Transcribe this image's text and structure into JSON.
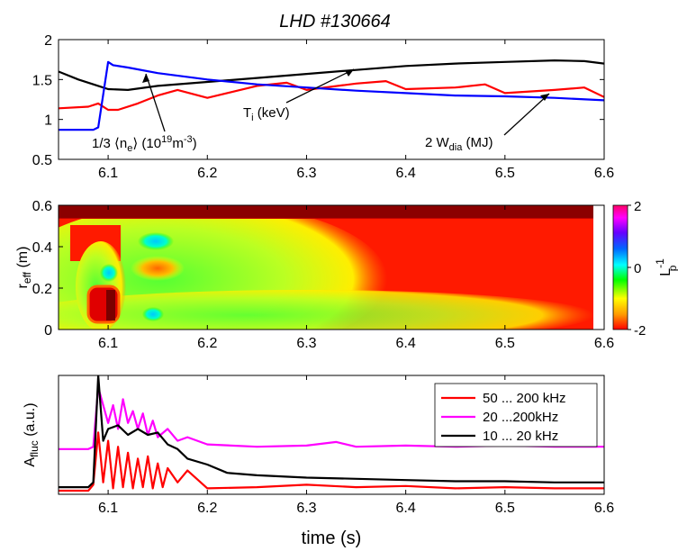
{
  "title": "LHD #130664",
  "chart_data": [
    {
      "type": "line",
      "panel": "top",
      "xlim": [
        6.05,
        6.6
      ],
      "ylim": [
        0.5,
        2
      ],
      "xticks": [
        6.1,
        6.2,
        6.3,
        6.4,
        6.5,
        6.6
      ],
      "xtick_labels": [
        "6.1",
        "6.2",
        "6.3",
        "6.4",
        "6.5",
        "6.6"
      ],
      "yticks": [
        0.5,
        1,
        1.5,
        2
      ],
      "ytick_labels": [
        "0.5",
        "1",
        "1.5",
        "2"
      ],
      "series": [
        {
          "name": "2 W_dia (MJ)",
          "color": "#000000",
          "x": [
            6.05,
            6.07,
            6.09,
            6.1,
            6.12,
            6.15,
            6.2,
            6.25,
            6.3,
            6.35,
            6.4,
            6.45,
            6.5,
            6.55,
            6.58,
            6.6
          ],
          "y": [
            1.6,
            1.5,
            1.42,
            1.38,
            1.37,
            1.42,
            1.47,
            1.52,
            1.57,
            1.62,
            1.67,
            1.7,
            1.72,
            1.74,
            1.73,
            1.7
          ]
        },
        {
          "name": "T_i (keV)",
          "color": "#ff0000",
          "x": [
            6.05,
            6.08,
            6.09,
            6.1,
            6.11,
            6.13,
            6.15,
            6.17,
            6.2,
            6.25,
            6.28,
            6.3,
            6.35,
            6.38,
            6.4,
            6.45,
            6.48,
            6.5,
            6.55,
            6.58,
            6.6
          ],
          "y": [
            1.14,
            1.16,
            1.2,
            1.12,
            1.12,
            1.2,
            1.3,
            1.37,
            1.27,
            1.42,
            1.46,
            1.37,
            1.45,
            1.48,
            1.38,
            1.4,
            1.44,
            1.33,
            1.37,
            1.4,
            1.28
          ]
        },
        {
          "name": "1/3 <n_e> (10^19 m^-3)",
          "color": "#0000ff",
          "x": [
            6.05,
            6.085,
            6.09,
            6.1,
            6.105,
            6.12,
            6.15,
            6.2,
            6.25,
            6.3,
            6.35,
            6.4,
            6.45,
            6.5,
            6.55,
            6.6
          ],
          "y": [
            0.87,
            0.87,
            0.9,
            1.72,
            1.68,
            1.65,
            1.58,
            1.5,
            1.44,
            1.4,
            1.36,
            1.33,
            1.3,
            1.29,
            1.27,
            1.24
          ]
        }
      ],
      "annotations": [
        {
          "text": "1/3",
          "target_x": 6.125,
          "target_y": 1.62
        },
        {
          "text": "Ti (keV)",
          "target_x": 6.37,
          "target_y": 1.62
        },
        {
          "text": "2 Wdia (MJ)",
          "target_x": 6.55,
          "target_y": 1.35
        }
      ]
    },
    {
      "type": "heatmap",
      "panel": "middle",
      "ylabel": "r_eff (m)",
      "xlim": [
        6.05,
        6.6
      ],
      "ylim": [
        0,
        0.6
      ],
      "xticks": [
        6.1,
        6.2,
        6.3,
        6.4,
        6.5,
        6.6
      ],
      "xtick_labels": [
        "6.1",
        "6.2",
        "6.3",
        "6.4",
        "6.5",
        "6.6"
      ],
      "yticks": [
        0,
        0.2,
        0.4,
        0.6
      ],
      "ytick_labels": [
        "0",
        "0.2",
        "0.4",
        "0.6"
      ],
      "colorbar": {
        "label": "L_p^-1",
        "range": [
          -2,
          2
        ],
        "ticks": [
          -2,
          0,
          2
        ],
        "tick_labels": [
          "-2",
          "0",
          "2"
        ],
        "colors": [
          "#ff0000",
          "#ff9900",
          "#ffff00",
          "#00ff00",
          "#00ffff",
          "#0066ff",
          "#6600ff",
          "#ff00ff",
          "#ff0066"
        ]
      },
      "features": [
        {
          "desc": "dark red high-value band",
          "x": [
            6.05,
            6.59
          ],
          "y": [
            0.53,
            0.6
          ],
          "value": -2.0
        },
        {
          "desc": "red background",
          "value": -1.8
        },
        {
          "desc": "green/yellow low-gradient region",
          "x": [
            6.08,
            6.4
          ],
          "y": [
            0.0,
            0.45
          ],
          "value": 0.0
        }
      ]
    },
    {
      "type": "line",
      "panel": "bottom",
      "xlabel": "time (s)",
      "ylabel": "A_fluc (a.u.)",
      "xlim": [
        6.05,
        6.6
      ],
      "ylim": [
        0,
        1
      ],
      "xticks": [
        6.1,
        6.2,
        6.3,
        6.4,
        6.5,
        6.6
      ],
      "xtick_labels": [
        "6.1",
        "6.2",
        "6.3",
        "6.4",
        "6.5",
        "6.6"
      ],
      "legend_position": "top-right",
      "series": [
        {
          "name": "50 ... 200 kHz",
          "color": "#ff0000",
          "x": [
            6.05,
            6.08,
            6.085,
            6.09,
            6.095,
            6.1,
            6.105,
            6.11,
            6.115,
            6.12,
            6.125,
            6.13,
            6.135,
            6.14,
            6.145,
            6.15,
            6.155,
            6.16,
            6.17,
            6.18,
            6.2,
            6.25,
            6.3,
            6.35,
            6.4,
            6.45,
            6.5,
            6.55,
            6.6
          ],
          "y": [
            0.03,
            0.03,
            0.08,
            0.52,
            0.1,
            0.45,
            0.05,
            0.4,
            0.06,
            0.35,
            0.05,
            0.3,
            0.06,
            0.32,
            0.05,
            0.26,
            0.06,
            0.22,
            0.1,
            0.2,
            0.05,
            0.06,
            0.08,
            0.06,
            0.07,
            0.05,
            0.06,
            0.05,
            0.05
          ]
        },
        {
          "name": "20 ...200kHz",
          "color": "#ff00ff",
          "x": [
            6.05,
            6.08,
            6.085,
            6.09,
            6.1,
            6.105,
            6.11,
            6.115,
            6.12,
            6.125,
            6.13,
            6.135,
            6.14,
            6.145,
            6.15,
            6.16,
            6.17,
            6.18,
            6.2,
            6.25,
            6.3,
            6.33,
            6.35,
            6.4,
            6.45,
            6.5,
            6.55,
            6.6
          ],
          "y": [
            0.38,
            0.38,
            0.4,
            0.9,
            0.6,
            0.75,
            0.55,
            0.8,
            0.6,
            0.7,
            0.55,
            0.68,
            0.5,
            0.62,
            0.48,
            0.55,
            0.45,
            0.48,
            0.42,
            0.4,
            0.41,
            0.44,
            0.4,
            0.41,
            0.4,
            0.41,
            0.4,
            0.4
          ]
        },
        {
          "name": "10 ... 20 kHz",
          "color": "#000000",
          "x": [
            6.05,
            6.08,
            6.085,
            6.09,
            6.095,
            6.1,
            6.11,
            6.12,
            6.13,
            6.14,
            6.15,
            6.16,
            6.17,
            6.18,
            6.2,
            6.22,
            6.25,
            6.3,
            6.35,
            6.4,
            6.45,
            6.5,
            6.55,
            6.6
          ],
          "y": [
            0.06,
            0.06,
            0.1,
            1.0,
            0.45,
            0.55,
            0.58,
            0.5,
            0.55,
            0.5,
            0.52,
            0.42,
            0.38,
            0.3,
            0.25,
            0.18,
            0.16,
            0.14,
            0.13,
            0.12,
            0.11,
            0.11,
            0.1,
            0.1
          ]
        }
      ]
    }
  ]
}
